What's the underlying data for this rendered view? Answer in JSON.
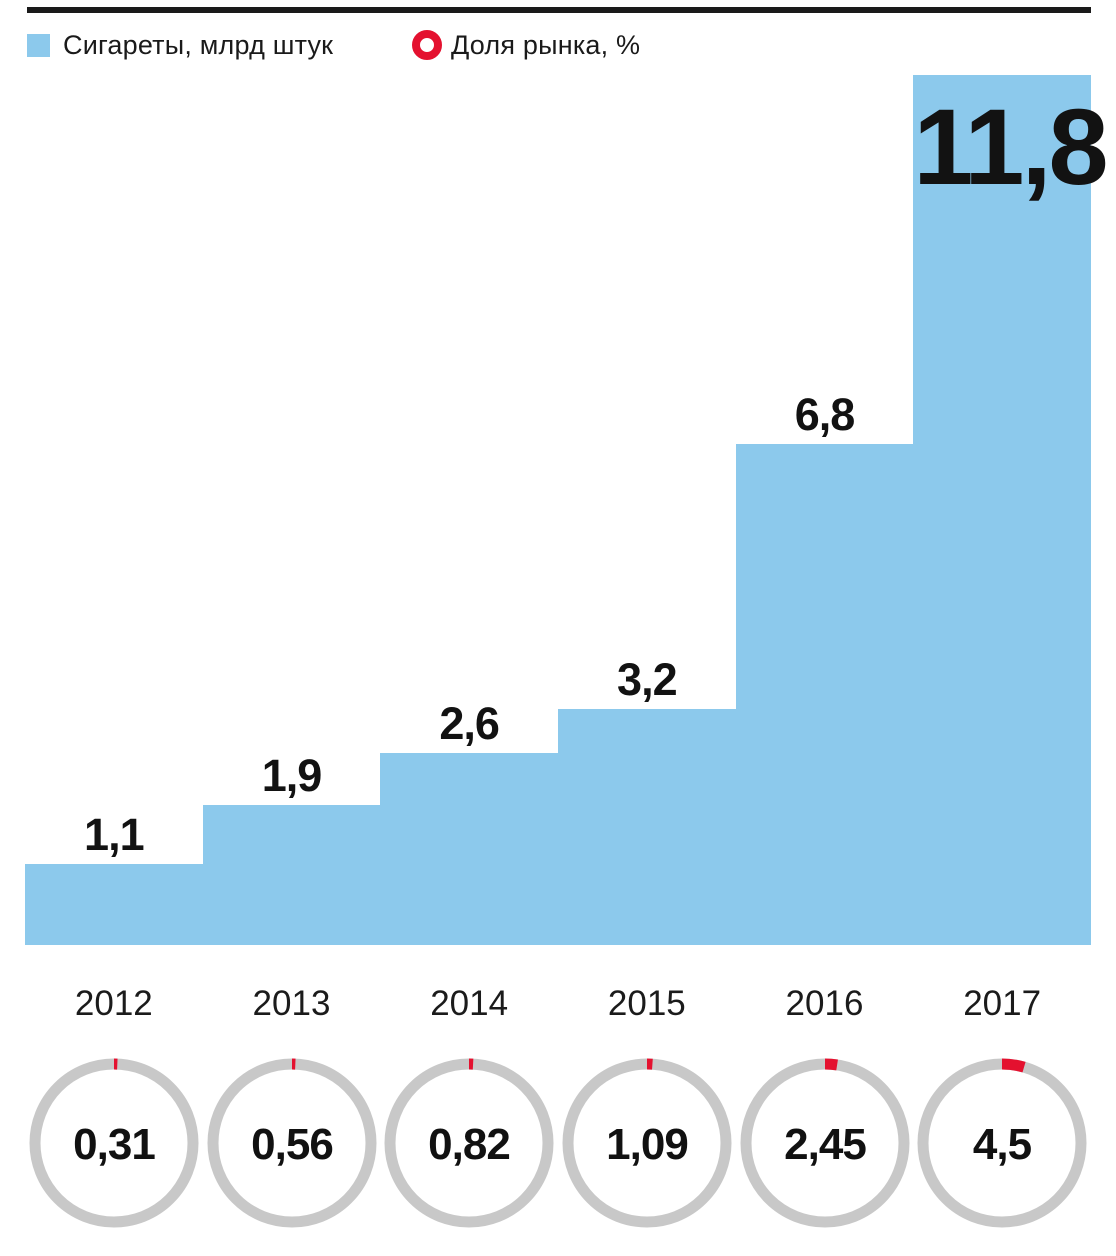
{
  "legend": [
    {
      "label": "Сигареты, млрд штук",
      "swatch": "square",
      "color": "#8cc9ec"
    },
    {
      "label": "Доля рынка, %",
      "swatch": "ring",
      "color": "#e4112f"
    }
  ],
  "chart_data": {
    "type": "bar",
    "subtype": "stepped-area-with-donut-row",
    "categories": [
      "2012",
      "2013",
      "2014",
      "2015",
      "2016",
      "2017"
    ],
    "series": [
      {
        "name": "Сигареты, млрд штук",
        "values": [
          1.1,
          1.9,
          2.6,
          3.2,
          6.8,
          11.8
        ],
        "labels": [
          "1,1",
          "1,9",
          "2,6",
          "3,2",
          "6,8",
          "11,8"
        ]
      },
      {
        "name": "Доля рынка, %",
        "values": [
          0.31,
          0.56,
          0.82,
          1.09,
          2.45,
          4.5
        ],
        "labels": [
          "0,31",
          "0,56",
          "0,82",
          "1,09",
          "2,45",
          "4,5"
        ]
      }
    ],
    "ylim": [
      0,
      11.8
    ],
    "grid": false,
    "legend_position": "top",
    "notes": "Blue stepped bars show cigarette volume per year with value labels above each step (largest label inside the 2017 bar). Below the year axis, gray rings show market share % as a red arc starting at 12 o'clock going clockwise, value printed in ring center."
  },
  "colors": {
    "bar": "#8cc9ec",
    "ring_gray": "#c8c8c8",
    "accent_red": "#e4112f",
    "text_dark": "#121212",
    "rule_black": "#1a1a1a"
  }
}
